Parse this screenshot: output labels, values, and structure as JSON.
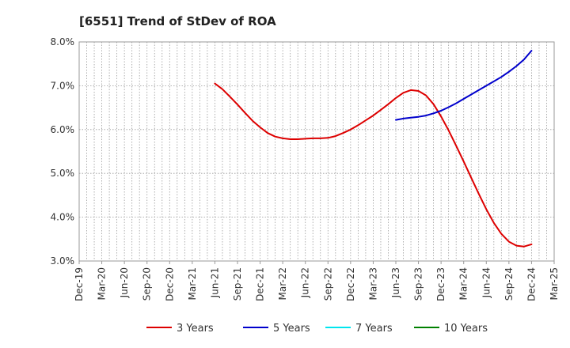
{
  "chart_data": {
    "type": "line",
    "title": "[6551]  Trend of StDev of ROA",
    "xlabel": "",
    "ylabel": "",
    "x_ticks": [
      "Dec-19",
      "Mar-20",
      "Jun-20",
      "Sep-20",
      "Dec-20",
      "Mar-21",
      "Jun-21",
      "Sep-21",
      "Dec-21",
      "Mar-22",
      "Jun-22",
      "Sep-22",
      "Dec-22",
      "Mar-23",
      "Jun-23",
      "Sep-23",
      "Dec-23",
      "Mar-24",
      "Jun-24",
      "Sep-24",
      "Dec-24",
      "Mar-25"
    ],
    "y_ticks": [
      "3.0%",
      "4.0%",
      "5.0%",
      "6.0%",
      "7.0%",
      "8.0%"
    ],
    "ylim": [
      3.0,
      8.0
    ],
    "grid": true,
    "legend_position": "bottom",
    "series": [
      {
        "name": "3 Years",
        "color": "#dd0000",
        "x": [
          "Jun-21",
          "Jul-21",
          "Aug-21",
          "Sep-21",
          "Oct-21",
          "Nov-21",
          "Dec-21",
          "Jan-22",
          "Feb-22",
          "Mar-22",
          "Apr-22",
          "May-22",
          "Jun-22",
          "Jul-22",
          "Aug-22",
          "Sep-22",
          "Oct-22",
          "Nov-22",
          "Dec-22",
          "Jan-23",
          "Feb-23",
          "Mar-23",
          "Apr-23",
          "May-23",
          "Jun-23",
          "Jul-23",
          "Aug-23",
          "Sep-23",
          "Oct-23",
          "Nov-23",
          "Dec-23",
          "Jan-24",
          "Feb-24",
          "Mar-24",
          "Apr-24",
          "May-24",
          "Jun-24",
          "Jul-24",
          "Aug-24",
          "Sep-24",
          "Oct-24",
          "Nov-24",
          "Dec-24"
        ],
        "values": [
          7.05,
          6.92,
          6.75,
          6.57,
          6.38,
          6.2,
          6.05,
          5.92,
          5.84,
          5.8,
          5.78,
          5.78,
          5.79,
          5.8,
          5.8,
          5.81,
          5.85,
          5.92,
          6.0,
          6.1,
          6.21,
          6.32,
          6.45,
          6.58,
          6.72,
          6.84,
          6.9,
          6.88,
          6.78,
          6.58,
          6.3,
          5.98,
          5.63,
          5.27,
          4.9,
          4.53,
          4.18,
          3.87,
          3.62,
          3.44,
          3.35,
          3.33,
          3.38
        ]
      },
      {
        "name": "5 Years",
        "color": "#0000cc",
        "x": [
          "Jun-23",
          "Jul-23",
          "Aug-23",
          "Sep-23",
          "Oct-23",
          "Nov-23",
          "Dec-23",
          "Jan-24",
          "Feb-24",
          "Mar-24",
          "Apr-24",
          "May-24",
          "Jun-24",
          "Jul-24",
          "Aug-24",
          "Sep-24",
          "Oct-24",
          "Nov-24",
          "Dec-24"
        ],
        "values": [
          6.22,
          6.25,
          6.27,
          6.29,
          6.32,
          6.37,
          6.43,
          6.51,
          6.6,
          6.7,
          6.8,
          6.9,
          7.0,
          7.1,
          7.2,
          7.32,
          7.45,
          7.6,
          7.8
        ]
      },
      {
        "name": "7 Years",
        "color": "#00e5ee",
        "x": [],
        "values": []
      },
      {
        "name": "10 Years",
        "color": "#008000",
        "x": [],
        "values": []
      }
    ]
  }
}
